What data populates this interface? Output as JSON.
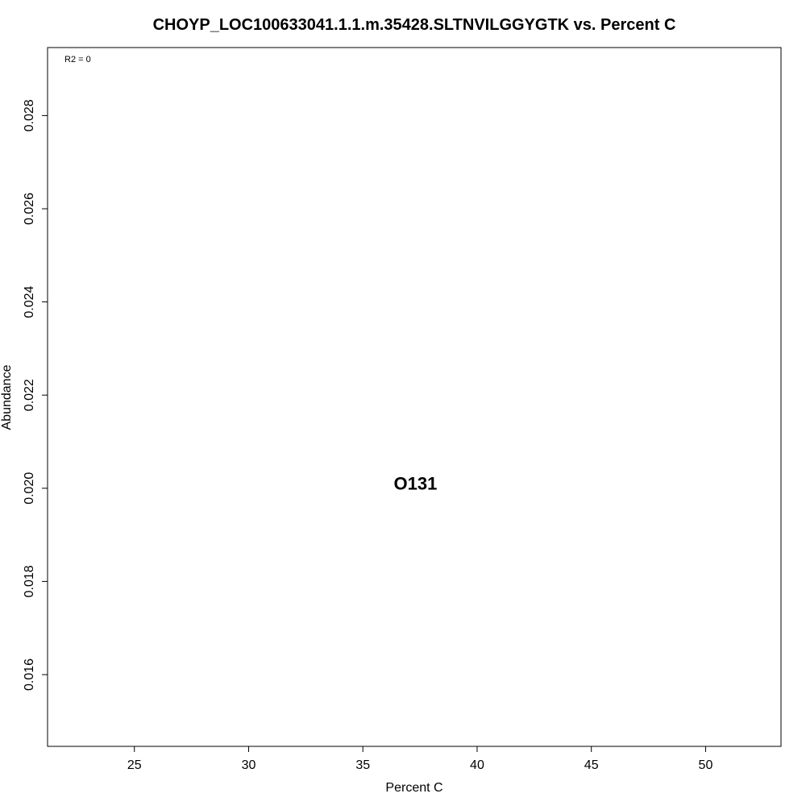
{
  "chart_data": {
    "type": "scatter",
    "title": "CHOYP_LOC100633041.1.1.m.35428.SLTNVILGGYGTK vs. Percent C",
    "xlabel": "Percent C",
    "ylabel": "Abundance",
    "xlim": [
      21.2,
      53.3
    ],
    "ylim": [
      0.01446,
      0.02946
    ],
    "x_ticks": [
      25,
      30,
      35,
      40,
      45,
      50
    ],
    "y_ticks": [
      0.016,
      0.018,
      0.02,
      0.022,
      0.024,
      0.026,
      0.028
    ],
    "x_tick_labels": [
      "25",
      "30",
      "35",
      "40",
      "45",
      "50"
    ],
    "y_tick_labels": [
      "0.016",
      "0.018",
      "0.020",
      "0.022",
      "0.024",
      "0.026",
      "0.028"
    ],
    "annotation": "R2 = 0",
    "points": [
      {
        "label": "O131",
        "x": 37.3,
        "y": 0.0201
      }
    ],
    "grid": false,
    "legend": "none"
  }
}
